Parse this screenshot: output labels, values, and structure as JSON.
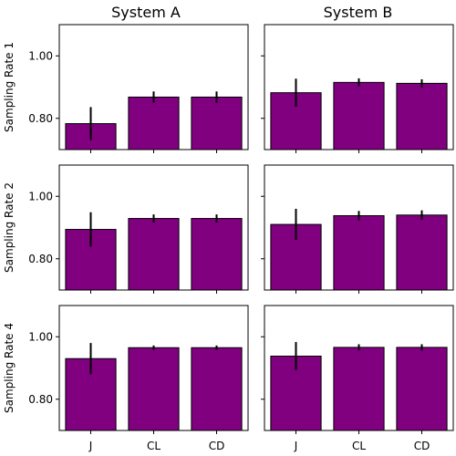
{
  "colors": {
    "bar": "#800080",
    "edge": "#000000",
    "error": "#000000"
  },
  "chart_data": {
    "type": "bar",
    "layout": {
      "rows": 3,
      "cols": 2,
      "sharex": true,
      "sharey": true
    },
    "categories": [
      "J",
      "CL",
      "CD"
    ],
    "col_titles": [
      "System A",
      "System B"
    ],
    "row_labels": [
      "Sampling Rate 1",
      "Sampling Rate 2",
      "Sampling Rate 4"
    ],
    "ylim": [
      0.7,
      1.1
    ],
    "yticks": [
      0.8,
      1.0
    ],
    "ytick_labels": [
      "0.80",
      "1.00"
    ],
    "grid": false,
    "legend": "none",
    "panels": [
      {
        "row": 0,
        "col": 0,
        "values": [
          0.783,
          0.868,
          0.868
        ],
        "errors": [
          0.053,
          0.018,
          0.018
        ]
      },
      {
        "row": 0,
        "col": 1,
        "values": [
          0.882,
          0.915,
          0.912
        ],
        "errors": [
          0.045,
          0.013,
          0.013
        ]
      },
      {
        "row": 1,
        "col": 0,
        "values": [
          0.894,
          0.929,
          0.929
        ],
        "errors": [
          0.055,
          0.013,
          0.013
        ]
      },
      {
        "row": 1,
        "col": 1,
        "values": [
          0.91,
          0.938,
          0.94
        ],
        "errors": [
          0.05,
          0.015,
          0.015
        ]
      },
      {
        "row": 2,
        "col": 0,
        "values": [
          0.93,
          0.965,
          0.965
        ],
        "errors": [
          0.05,
          0.007,
          0.007
        ]
      },
      {
        "row": 2,
        "col": 1,
        "values": [
          0.938,
          0.966,
          0.966
        ],
        "errors": [
          0.045,
          0.01,
          0.01
        ]
      }
    ]
  }
}
